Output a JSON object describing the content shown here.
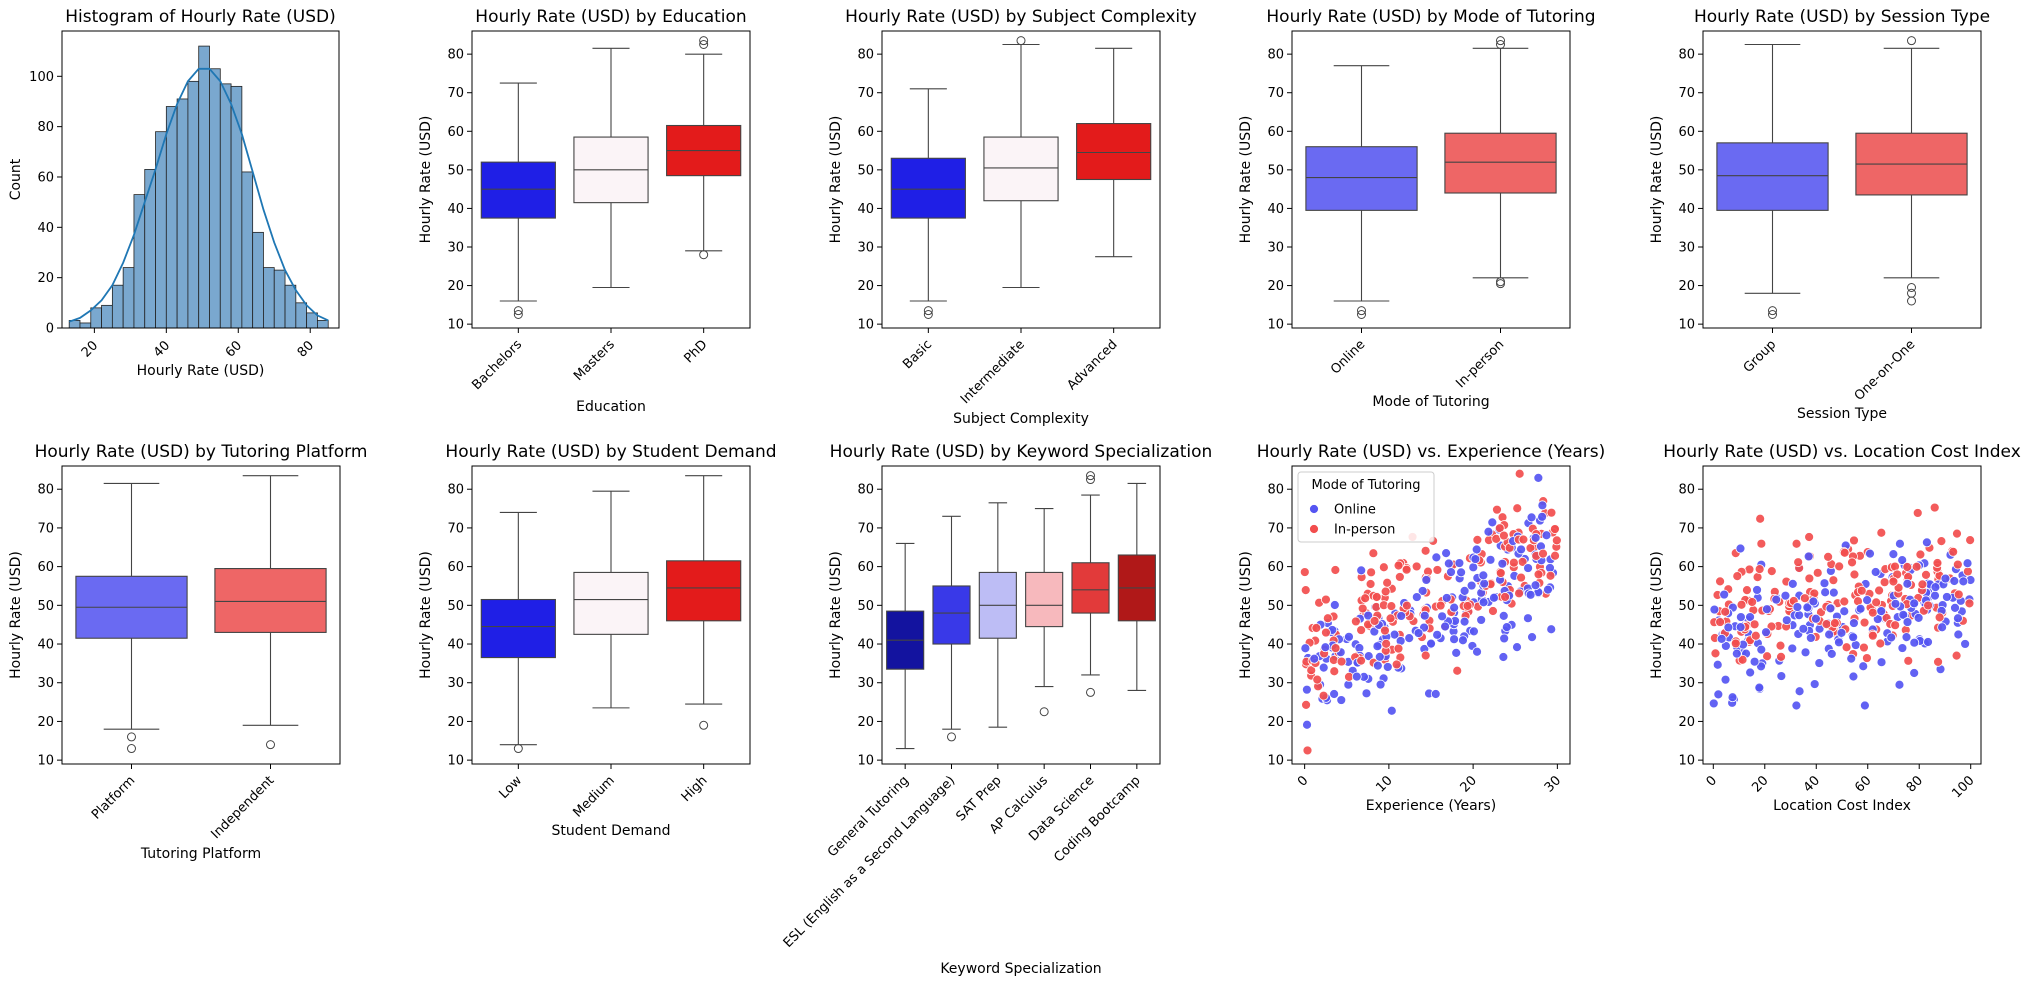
{
  "chart_data": [
    {
      "id": "hist",
      "type": "histogram",
      "title": "Histogram of Hourly Rate (USD)",
      "xlabel": "Hourly Rate (USD)",
      "ylabel": "Count",
      "xlim": [
        11,
        88
      ],
      "ylim": [
        0,
        118
      ],
      "xticks": [
        20,
        40,
        60,
        80
      ],
      "yticks": [
        0,
        20,
        40,
        60,
        80,
        100
      ],
      "bin_edges": [
        13,
        16,
        19,
        22,
        25,
        28,
        31,
        34,
        37,
        40,
        43,
        46,
        49,
        52,
        55,
        58,
        61,
        64,
        67,
        70,
        73,
        76,
        79,
        82,
        85
      ],
      "counts": [
        3,
        2,
        8,
        9,
        17,
        24,
        53,
        63,
        78,
        88,
        91,
        98,
        112,
        103,
        97,
        96,
        62,
        38,
        24,
        23,
        17,
        10,
        6,
        3
      ],
      "kde": [
        [
          13,
          2.5
        ],
        [
          16,
          4
        ],
        [
          19,
          7
        ],
        [
          22,
          11
        ],
        [
          25,
          17
        ],
        [
          28,
          26
        ],
        [
          31,
          37
        ],
        [
          34,
          50
        ],
        [
          37,
          63
        ],
        [
          40,
          77
        ],
        [
          43,
          89
        ],
        [
          46,
          98
        ],
        [
          49,
          103
        ],
        [
          52,
          103
        ],
        [
          55,
          98
        ],
        [
          58,
          89
        ],
        [
          61,
          77
        ],
        [
          64,
          62
        ],
        [
          67,
          47
        ],
        [
          70,
          34
        ],
        [
          73,
          23
        ],
        [
          76,
          15
        ],
        [
          79,
          9
        ],
        [
          82,
          5
        ],
        [
          85,
          3
        ]
      ],
      "color": "#7aa8cf",
      "kde_color": "#1f77b4"
    },
    {
      "id": "education",
      "type": "box",
      "title": "Hourly Rate (USD) by Education",
      "xlabel": "Education",
      "ylabel": "Hourly Rate (USD)",
      "ylim": [
        9,
        86
      ],
      "yticks": [
        10,
        20,
        30,
        40,
        50,
        60,
        70,
        80
      ],
      "categories": [
        "Bachelors",
        "Masters",
        "PhD"
      ],
      "boxes": [
        {
          "q1": 37.5,
          "median": 45,
          "q3": 52,
          "whislo": 16,
          "whishi": 72.5,
          "fliers": [
            13.5,
            12.5
          ],
          "color": "#1f1fe6"
        },
        {
          "q1": 41.5,
          "median": 50,
          "q3": 58.5,
          "whislo": 19.5,
          "whishi": 81.5,
          "fliers": [],
          "color": "#fbf4f7"
        },
        {
          "q1": 48.5,
          "median": 55,
          "q3": 61.5,
          "whislo": 29,
          "whishi": 80,
          "fliers": [
            28,
            82.5,
            83.5
          ],
          "color": "#e31b1b"
        }
      ]
    },
    {
      "id": "complexity",
      "type": "box",
      "title": "Hourly Rate (USD) by Subject Complexity",
      "xlabel": "Subject Complexity",
      "ylabel": "Hourly Rate (USD)",
      "ylim": [
        9,
        86
      ],
      "yticks": [
        10,
        20,
        30,
        40,
        50,
        60,
        70,
        80
      ],
      "categories": [
        "Basic",
        "Intermediate",
        "Advanced"
      ],
      "boxes": [
        {
          "q1": 37.5,
          "median": 45,
          "q3": 53,
          "whislo": 16,
          "whishi": 71,
          "fliers": [
            13.5,
            12.5
          ],
          "color": "#1f1fe6"
        },
        {
          "q1": 42,
          "median": 50.5,
          "q3": 58.5,
          "whislo": 19.5,
          "whishi": 82.5,
          "fliers": [
            83.5
          ],
          "color": "#fbf4f7"
        },
        {
          "q1": 47.5,
          "median": 54.5,
          "q3": 62,
          "whislo": 27.5,
          "whishi": 81.5,
          "fliers": [],
          "color": "#e31b1b"
        }
      ]
    },
    {
      "id": "mode",
      "type": "box",
      "title": "Hourly Rate (USD) by Mode of Tutoring",
      "xlabel": "Mode of Tutoring",
      "ylabel": "Hourly Rate (USD)",
      "ylim": [
        9,
        86
      ],
      "yticks": [
        10,
        20,
        30,
        40,
        50,
        60,
        70,
        80
      ],
      "categories": [
        "Online",
        "In-person"
      ],
      "boxes": [
        {
          "q1": 39.5,
          "median": 48,
          "q3": 56,
          "whislo": 16,
          "whishi": 77,
          "fliers": [
            13.5,
            12.5
          ],
          "color": "#6a6af2"
        },
        {
          "q1": 44,
          "median": 52,
          "q3": 59.5,
          "whislo": 22,
          "whishi": 81.5,
          "fliers": [
            21,
            20.5,
            82.5,
            83.5
          ],
          "color": "#ee6666"
        }
      ]
    },
    {
      "id": "session",
      "type": "box",
      "title": "Hourly Rate (USD) by Session Type",
      "xlabel": "Session Type",
      "ylabel": "Hourly Rate (USD)",
      "ylim": [
        9,
        86
      ],
      "yticks": [
        10,
        20,
        30,
        40,
        50,
        60,
        70,
        80
      ],
      "categories": [
        "Group",
        "One-on-One"
      ],
      "boxes": [
        {
          "q1": 39.5,
          "median": 48.5,
          "q3": 57,
          "whislo": 18,
          "whishi": 82.5,
          "fliers": [
            13.5,
            12.5
          ],
          "color": "#6a6af2"
        },
        {
          "q1": 43.5,
          "median": 51.5,
          "q3": 59.5,
          "whislo": 22,
          "whishi": 81.5,
          "fliers": [
            19.5,
            18,
            16,
            83.5
          ],
          "color": "#ee6666"
        }
      ]
    },
    {
      "id": "platform",
      "type": "box",
      "title": "Hourly Rate (USD) by Tutoring Platform",
      "xlabel": "Tutoring Platform",
      "ylabel": "Hourly Rate (USD)",
      "ylim": [
        9,
        86
      ],
      "yticks": [
        10,
        20,
        30,
        40,
        50,
        60,
        70,
        80
      ],
      "categories": [
        "Platform",
        "Independent"
      ],
      "boxes": [
        {
          "q1": 41.5,
          "median": 49.5,
          "q3": 57.5,
          "whislo": 18,
          "whishi": 81.5,
          "fliers": [
            16,
            13
          ],
          "color": "#6a6af2"
        },
        {
          "q1": 43,
          "median": 51,
          "q3": 59.5,
          "whislo": 19,
          "whishi": 83.5,
          "fliers": [
            14
          ],
          "color": "#ee6666"
        }
      ]
    },
    {
      "id": "demand",
      "type": "box",
      "title": "Hourly Rate (USD) by Student Demand",
      "xlabel": "Student Demand",
      "ylabel": "Hourly Rate (USD)",
      "ylim": [
        9,
        86
      ],
      "yticks": [
        10,
        20,
        30,
        40,
        50,
        60,
        70,
        80
      ],
      "categories": [
        "Low",
        "Medium",
        "High"
      ],
      "boxes": [
        {
          "q1": 36.5,
          "median": 44.5,
          "q3": 51.5,
          "whislo": 14,
          "whishi": 74,
          "fliers": [
            13
          ],
          "color": "#1f1fe6"
        },
        {
          "q1": 42.5,
          "median": 51.5,
          "q3": 58.5,
          "whislo": 23.5,
          "whishi": 79.5,
          "fliers": [],
          "color": "#fbf4f7"
        },
        {
          "q1": 46,
          "median": 54.5,
          "q3": 61.5,
          "whislo": 24.5,
          "whishi": 83.5,
          "fliers": [
            19
          ],
          "color": "#e31b1b"
        }
      ]
    },
    {
      "id": "keyword",
      "type": "box",
      "title": "Hourly Rate (USD) by Keyword Specialization",
      "xlabel": "Keyword Specialization",
      "ylabel": "Hourly Rate (USD)",
      "ylim": [
        9,
        86
      ],
      "yticks": [
        10,
        20,
        30,
        40,
        50,
        60,
        70,
        80
      ],
      "categories": [
        "General Tutoring",
        "ESL (English as a Second Language)",
        "SAT Prep",
        "AP Calculus",
        "Data Science",
        "Coding Bootcamp"
      ],
      "boxes": [
        {
          "q1": 33.5,
          "median": 41,
          "q3": 48.5,
          "whislo": 13,
          "whishi": 66,
          "fliers": [],
          "color": "#13139f"
        },
        {
          "q1": 40,
          "median": 48,
          "q3": 55,
          "whislo": 18,
          "whishi": 73,
          "fliers": [
            16
          ],
          "color": "#3939e8"
        },
        {
          "q1": 41.5,
          "median": 50,
          "q3": 58.5,
          "whislo": 18.5,
          "whishi": 76.5,
          "fliers": [],
          "color": "#bdbdf5"
        },
        {
          "q1": 44.5,
          "median": 50,
          "q3": 58.5,
          "whislo": 29,
          "whishi": 75,
          "fliers": [
            22.5
          ],
          "color": "#f7b9bd"
        },
        {
          "q1": 48,
          "median": 54,
          "q3": 61,
          "whislo": 32,
          "whishi": 78.5,
          "fliers": [
            27.5,
            82.5,
            83.5
          ],
          "color": "#e23a3a"
        },
        {
          "q1": 46,
          "median": 54.5,
          "q3": 63,
          "whislo": 28,
          "whishi": 81.5,
          "fliers": [],
          "color": "#b01818"
        }
      ]
    },
    {
      "id": "experience",
      "type": "scatter",
      "title": "Hourly Rate (USD) vs. Experience (Years)",
      "xlabel": "Experience (Years)",
      "ylabel": "Hourly Rate (USD)",
      "xlim": [
        -1.5,
        31.5
      ],
      "ylim": [
        9,
        86
      ],
      "xticks": [
        0,
        10,
        20,
        30
      ],
      "yticks": [
        10,
        20,
        30,
        40,
        50,
        60,
        70,
        80
      ],
      "legend": {
        "title": "Mode of Tutoring",
        "entries": [
          "Online",
          "In-person"
        ],
        "position": "upper-left"
      },
      "series": [
        {
          "name": "Online",
          "color": "#5555f2"
        },
        {
          "name": "In-person",
          "color": "#f24d4d"
        }
      ],
      "x_range": [
        0,
        30
      ],
      "trend": {
        "intercept": 34,
        "slope": 1.05,
        "spread": 11
      },
      "n_points": 380
    },
    {
      "id": "location",
      "type": "scatter",
      "title": "Hourly Rate (USD) vs. Location Cost Index",
      "xlabel": "Location Cost Index",
      "ylabel": "Hourly Rate (USD)",
      "xlim": [
        -4,
        104
      ],
      "ylim": [
        9,
        86
      ],
      "xticks": [
        0,
        20,
        40,
        60,
        80,
        100
      ],
      "yticks": [
        10,
        20,
        30,
        40,
        50,
        60,
        70,
        80
      ],
      "series": [
        {
          "name": "Online",
          "color": "#5555f2"
        },
        {
          "name": "In-person",
          "color": "#f24d4d"
        }
      ],
      "x_range": [
        0,
        100
      ],
      "trend": {
        "intercept": 42,
        "slope": 0.13,
        "spread": 11
      },
      "n_points": 380
    }
  ]
}
